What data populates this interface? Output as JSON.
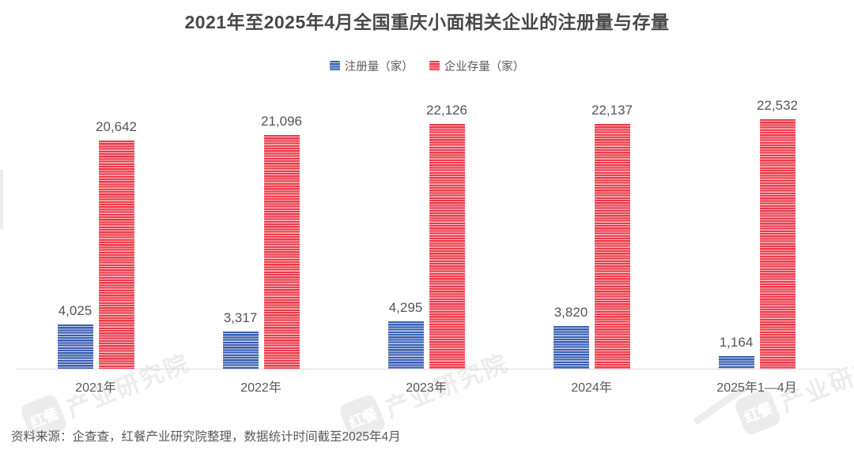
{
  "title": "2021年至2025年4月全国重庆小面相关企业的注册量与存量",
  "legend": [
    {
      "label": "注册量（家）"
    },
    {
      "label": "企业存量（家）"
    }
  ],
  "footer": "资料来源：企查查，红餐产业研究院整理，数据统计时间截至2025年4月",
  "watermark": {
    "logo_text": "红餐",
    "text": "产业研究院"
  },
  "colors": {
    "registrations_base": "#3a5fb2",
    "registrations_stripe": "#c8d3ec",
    "stock_base": "#ee3a4b",
    "stock_stripe": "#f9bfc3",
    "axis": "#d9d9d9",
    "title_text": "#484848",
    "label_text": "#555555",
    "watermark": "#ececec"
  },
  "chart_data": {
    "type": "bar",
    "title": "2021年至2025年4月全国重庆小面相关企业的注册量与存量",
    "categories": [
      "2021年",
      "2022年",
      "2023年",
      "2024年",
      "2025年1—4月"
    ],
    "series": [
      {
        "name": "注册量（家）",
        "color": "#3a5fb2",
        "stripe": "#c8d3ec",
        "values": [
          4025,
          3317,
          4295,
          3820,
          1164
        ],
        "labels": [
          "4,025",
          "3,317",
          "4,295",
          "3,820",
          "1,164"
        ]
      },
      {
        "name": "企业存量（家）",
        "color": "#ee3a4b",
        "stripe": "#f9bfc3",
        "values": [
          20642,
          21096,
          22126,
          22137,
          22532
        ],
        "labels": [
          "20,642",
          "21,096",
          "22,126",
          "22,137",
          "22,532"
        ]
      }
    ],
    "xlabel": "",
    "ylabel": "",
    "ylim": [
      0,
      23000
    ],
    "grid": false,
    "legend_position": "top",
    "bar_pattern": "horizontal-stripes"
  }
}
